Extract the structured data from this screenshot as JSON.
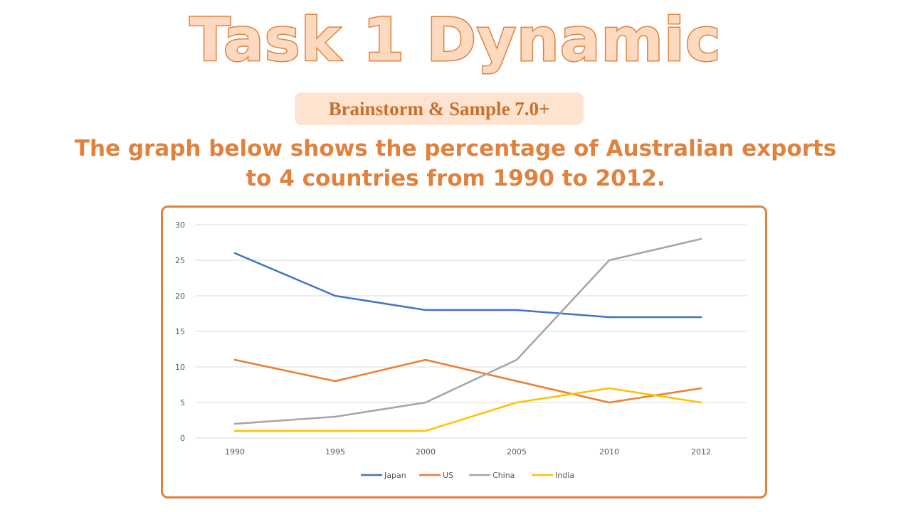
{
  "header": {
    "title": "Task 1  Dynamic",
    "badge": "Brainstorm & Sample 7.0+",
    "subtitle_line1": "The graph below shows the percentage of Australian exports",
    "subtitle_line2": "to 4 countries from 1990 to 2012."
  },
  "colors": {
    "accent": "#e0823e",
    "badge_bg": "#fde3d0",
    "title_fill": "#fcd9bf"
  },
  "chart_data": {
    "type": "line",
    "categories": [
      "1990",
      "1995",
      "2000",
      "2005",
      "2010",
      "2012"
    ],
    "ylim": [
      0,
      30
    ],
    "yticks": [
      0,
      5,
      10,
      15,
      20,
      25,
      30
    ],
    "grid": true,
    "legend_position": "bottom",
    "series": [
      {
        "name": "Japan",
        "color": "#4472c4",
        "values": [
          26,
          20,
          18,
          18,
          17,
          17
        ]
      },
      {
        "name": "US",
        "color": "#ed7d31",
        "values": [
          11,
          8,
          11,
          8,
          5,
          7
        ]
      },
      {
        "name": "China",
        "color": "#a5a5a5",
        "values": [
          2,
          3,
          5,
          11,
          25,
          28
        ]
      },
      {
        "name": "India",
        "color": "#ffc000",
        "values": [
          1,
          1,
          1,
          5,
          7,
          5
        ]
      }
    ]
  }
}
